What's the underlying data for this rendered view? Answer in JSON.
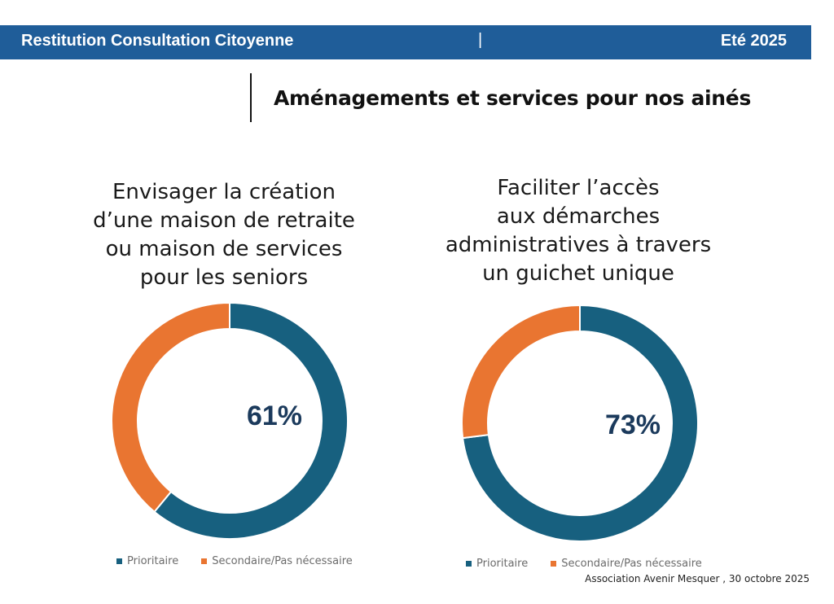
{
  "header": {
    "left_title": "Restitution Consultation Citoyenne",
    "separator": "|",
    "right_title": "Eté 2025",
    "background_color": "#1f5d99"
  },
  "section_title": "Aménagements et services pour nos ainés",
  "colors": {
    "prioritaire": "#17607f",
    "secondaire": "#e97531",
    "center_label": "#1b3a5c"
  },
  "chart_data": [
    {
      "type": "pie",
      "variant": "donut",
      "title_lines": [
        "Envisager la création",
        "d’une maison de retraite",
        "ou maison de services",
        "pour les seniors"
      ],
      "categories": [
        "Prioritaire",
        "Secondaire/Pas nécessaire"
      ],
      "values": [
        61,
        39
      ],
      "center_label": "61%",
      "legend": [
        "Prioritaire",
        "Secondaire/Pas nécessaire"
      ],
      "legend_position": "bottom"
    },
    {
      "type": "pie",
      "variant": "donut",
      "title_lines": [
        "Faciliter l’accès",
        "aux démarches",
        "administratives à travers",
        "un guichet unique"
      ],
      "categories": [
        "Prioritaire",
        "Secondaire/Pas nécessaire"
      ],
      "values": [
        73,
        27
      ],
      "center_label": "73%",
      "legend": [
        "Prioritaire",
        "Secondaire/Pas nécessaire"
      ],
      "legend_position": "bottom"
    }
  ],
  "footer": "Association Avenir Mesquer , 30 octobre 2025"
}
